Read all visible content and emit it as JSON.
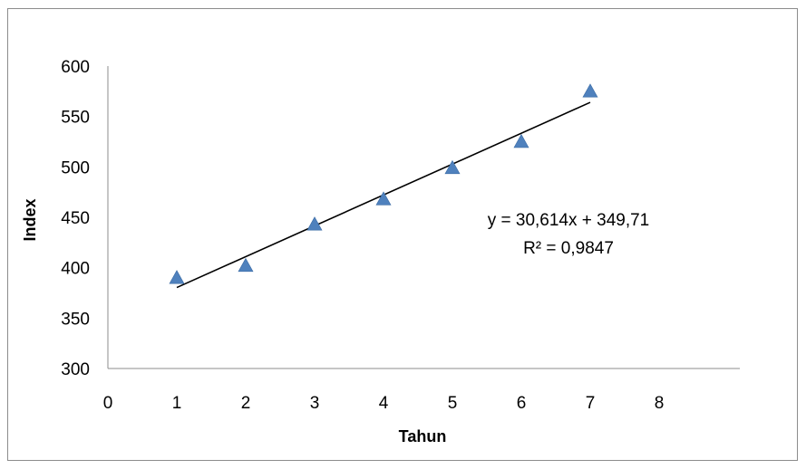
{
  "chart_data": {
    "type": "scatter",
    "title": "",
    "xlabel": "Tahun",
    "ylabel": "Index",
    "xlim": [
      0,
      8
    ],
    "ylim": [
      300,
      600
    ],
    "x_ticks": [
      "0",
      "1",
      "2",
      "3",
      "4",
      "5",
      "6",
      "7",
      "8"
    ],
    "y_ticks": [
      "300",
      "350",
      "400",
      "450",
      "500",
      "550",
      "600"
    ],
    "grid": false,
    "legend": "none",
    "marker": "triangle",
    "marker_color": "#4f81bd",
    "series": [
      {
        "points": [
          {
            "x": 1,
            "y": 390
          },
          {
            "x": 2,
            "y": 402
          },
          {
            "x": 3,
            "y": 443
          },
          {
            "x": 4,
            "y": 468
          },
          {
            "x": 5,
            "y": 499
          },
          {
            "x": 6,
            "y": 525
          },
          {
            "x": 7,
            "y": 575
          }
        ]
      }
    ],
    "trendline": {
      "type": "linear",
      "slope": 30.614,
      "intercept": 349.71,
      "x_range": [
        1,
        7
      ],
      "color": "#000000"
    },
    "annotations": {
      "equation": "y = 30,614x + 349,71",
      "r_squared": "R² = 0,9847"
    }
  }
}
